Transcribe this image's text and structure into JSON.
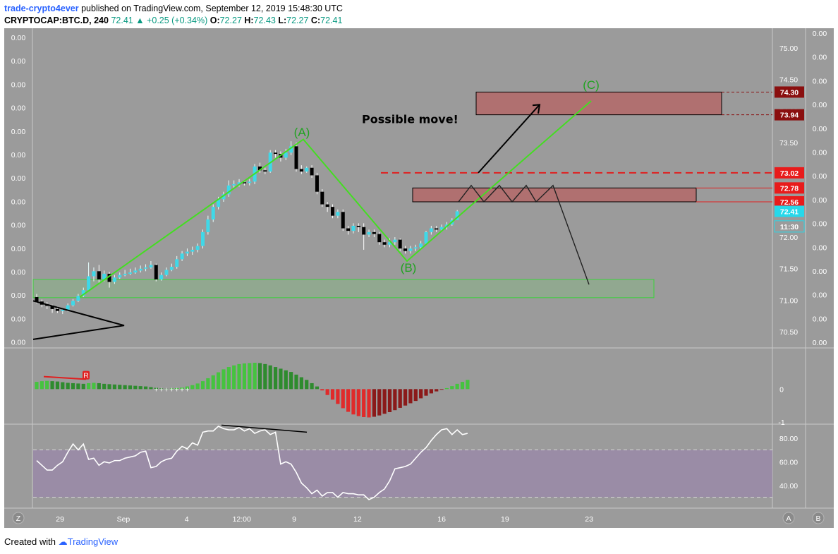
{
  "header": {
    "author": "trade-crypto4ever",
    "published": "published on TradingView.com, September 12, 2019 15:48:30 UTC",
    "symbol": "CRYPTOCAP:BTC.D, 240",
    "last": "72.41",
    "change": "+0.25 (+0.34%)",
    "o_label": "O:",
    "o_value": "72.27",
    "h_label": "H:",
    "h_value": "72.43",
    "l_label": "L:",
    "l_value": "72.27",
    "c_label": "C:",
    "c_value": "72.41"
  },
  "footer": {
    "created_with": "Created with",
    "brand": "TradingView"
  },
  "colors": {
    "pane_bg": "#9b9b9b",
    "axis_bg": "#9b9b9b",
    "up": "#3fd8e8",
    "down": "#000000",
    "wave_line": "#44dd22",
    "macd_up_strong": "#45c33f",
    "macd_up_weak": "#2e8b2e",
    "macd_down_strong": "#e02a2a",
    "macd_down_weak": "#8b1a1a",
    "rsi_band": "#9a8aa8",
    "price_tag_red": "#e81b1b",
    "price_tag_dark": "#8a0f0f",
    "price_tag_cyan": "#27d8ea"
  },
  "chart_data": [
    {
      "type": "candlestick",
      "title": "CRYPTOCAP:BTC.D, 240",
      "ylim": [
        70.3,
        75.2
      ],
      "right_axis_ticks": [
        "75.00",
        "74.50",
        "74.00",
        "73.50",
        "73.00",
        "72.50",
        "72.00",
        "71.50",
        "71.00",
        "70.50"
      ],
      "left_axis_ticks": [
        "0.00",
        "0.00",
        "0.00",
        "0.00",
        "0.00",
        "0.00",
        "0.00",
        "0.00",
        "0.00",
        "0.00",
        "0.00",
        "0.00",
        "0.00",
        "0.00"
      ],
      "far_right_axis_ticks": [
        "0.00",
        "0.00",
        "0.00",
        "0.00",
        "0.00",
        "0.00",
        "0.00",
        "0.00",
        "0.00",
        "0.00",
        "0.00",
        "0.00",
        "0.00",
        "0.00"
      ],
      "x_tick_labels": [
        {
          "label": "29",
          "pos": 4.5
        },
        {
          "label": "Sep",
          "pos": 16.7
        },
        {
          "label": "4",
          "pos": 28.9
        },
        {
          "label": "12:00",
          "pos": 39.5
        },
        {
          "label": "9",
          "pos": 49.6
        },
        {
          "label": "12",
          "pos": 61.8
        },
        {
          "label": "16",
          "pos": 78.0
        },
        {
          "label": "19",
          "pos": 90.2
        },
        {
          "label": "23",
          "pos": 106.4
        }
      ],
      "price_labels": [
        {
          "text": "74.30",
          "value": 74.3,
          "style": "dark"
        },
        {
          "text": "73.94",
          "value": 73.94,
          "style": "dark"
        },
        {
          "text": "73.02",
          "value": 73.02,
          "style": "red"
        },
        {
          "text": "72.78",
          "value": 72.78,
          "style": "red"
        },
        {
          "text": "72.56",
          "value": 72.56,
          "style": "red"
        },
        {
          "text": "72.41",
          "value": 72.41,
          "style": "cyan"
        },
        {
          "text": "11:30",
          "value": 72.17,
          "style": "cyan_outline"
        }
      ],
      "candles": [
        [
          71.05,
          70.98,
          71.1,
          70.95
        ],
        [
          70.98,
          70.93,
          71.01,
          70.89
        ],
        [
          70.93,
          70.91,
          70.97,
          70.86
        ],
        [
          70.91,
          70.86,
          70.93,
          70.8
        ],
        [
          70.86,
          70.83,
          70.9,
          70.8
        ],
        [
          70.83,
          70.85,
          70.87,
          70.78
        ],
        [
          70.85,
          70.92,
          70.95,
          70.82
        ],
        [
          70.92,
          70.99,
          71.02,
          70.9
        ],
        [
          70.99,
          71.07,
          71.1,
          70.97
        ],
        [
          71.07,
          71.16,
          71.2,
          71.05
        ],
        [
          71.16,
          71.38,
          71.6,
          71.14
        ],
        [
          71.38,
          71.46,
          71.52,
          71.3
        ],
        [
          71.46,
          71.33,
          71.56,
          71.28
        ],
        [
          71.33,
          71.42,
          71.47,
          71.3
        ],
        [
          71.42,
          71.29,
          71.45,
          71.2
        ],
        [
          71.29,
          71.36,
          71.4,
          71.26
        ],
        [
          71.36,
          71.4,
          71.44,
          71.34
        ],
        [
          71.4,
          71.42,
          71.48,
          71.38
        ],
        [
          71.42,
          71.44,
          71.5,
          71.4
        ],
        [
          71.44,
          71.47,
          71.52,
          71.42
        ],
        [
          71.47,
          71.5,
          71.55,
          71.44
        ],
        [
          71.5,
          71.52,
          71.57,
          71.46
        ],
        [
          71.52,
          71.56,
          71.62,
          71.5
        ],
        [
          71.56,
          71.33,
          71.58,
          71.3
        ],
        [
          71.33,
          71.4,
          71.44,
          71.31
        ],
        [
          71.4,
          71.48,
          71.52,
          71.38
        ],
        [
          71.48,
          71.53,
          71.58,
          71.46
        ],
        [
          71.53,
          71.65,
          71.7,
          71.5
        ],
        [
          71.65,
          71.74,
          71.78,
          71.62
        ],
        [
          71.74,
          71.77,
          71.82,
          71.7
        ],
        [
          71.77,
          71.8,
          71.85,
          71.72
        ],
        [
          71.8,
          71.86,
          71.9,
          71.76
        ],
        [
          71.86,
          72.08,
          72.12,
          71.82
        ],
        [
          72.08,
          72.28,
          72.34,
          72.04
        ],
        [
          72.28,
          72.48,
          72.52,
          72.24
        ],
        [
          72.48,
          72.6,
          72.64,
          72.44
        ],
        [
          72.6,
          72.68,
          72.72,
          72.56
        ],
        [
          72.68,
          72.82,
          72.9,
          72.64
        ],
        [
          72.82,
          72.84,
          72.9,
          72.78
        ],
        [
          72.84,
          72.87,
          72.92,
          72.8
        ],
        [
          72.87,
          72.86,
          72.9,
          72.82
        ],
        [
          72.86,
          72.88,
          72.92,
          72.82
        ],
        [
          72.88,
          73.12,
          73.16,
          72.84
        ],
        [
          73.12,
          73.06,
          73.18,
          73.02
        ],
        [
          73.06,
          73.04,
          73.1,
          73.0
        ],
        [
          73.04,
          73.34,
          73.38,
          73.02
        ],
        [
          73.34,
          73.32,
          73.38,
          73.26
        ],
        [
          73.32,
          73.26,
          73.36,
          73.2
        ],
        [
          73.26,
          73.34,
          73.4,
          73.22
        ],
        [
          73.34,
          73.44,
          73.52,
          73.3
        ],
        [
          73.44,
          73.08,
          73.5,
          73.04
        ],
        [
          73.08,
          73.04,
          73.14,
          73.0
        ],
        [
          73.04,
          73.1,
          73.12,
          73.02
        ],
        [
          73.1,
          72.98,
          73.14,
          72.94
        ],
        [
          72.98,
          72.72,
          73.02,
          72.68
        ],
        [
          72.72,
          72.52,
          72.76,
          72.48
        ],
        [
          72.52,
          72.48,
          72.56,
          72.4
        ],
        [
          72.48,
          72.34,
          72.52,
          72.3
        ],
        [
          72.34,
          72.4,
          72.44,
          72.3
        ],
        [
          72.4,
          72.14,
          72.44,
          72.1
        ],
        [
          72.14,
          72.1,
          72.18,
          72.04
        ],
        [
          72.1,
          72.18,
          72.22,
          72.06
        ],
        [
          72.18,
          72.16,
          72.22,
          72.08
        ],
        [
          72.16,
          72.04,
          72.22,
          71.8
        ],
        [
          72.04,
          72.08,
          72.12,
          72.0
        ],
        [
          72.08,
          72.05,
          72.12,
          72.0
        ],
        [
          72.05,
          71.92,
          72.08,
          71.88
        ],
        [
          71.92,
          71.88,
          71.96,
          71.84
        ],
        [
          71.88,
          71.92,
          71.98,
          71.84
        ],
        [
          71.92,
          71.96,
          72.0,
          71.88
        ],
        [
          71.96,
          71.82,
          71.98,
          71.78
        ],
        [
          71.82,
          71.78,
          71.86,
          71.74
        ],
        [
          71.78,
          71.82,
          71.86,
          71.74
        ],
        [
          71.82,
          71.84,
          71.88,
          71.78
        ],
        [
          71.84,
          71.9,
          71.94,
          71.8
        ],
        [
          71.9,
          72.08,
          72.1,
          71.88
        ],
        [
          72.08,
          72.14,
          72.18,
          72.04
        ],
        [
          72.14,
          72.12,
          72.18,
          72.08
        ],
        [
          72.12,
          72.16,
          72.2,
          72.1
        ],
        [
          72.16,
          72.2,
          72.24,
          72.12
        ],
        [
          72.2,
          72.27,
          72.3,
          72.18
        ],
        [
          72.27,
          72.41,
          72.43,
          72.27
        ]
      ],
      "wave_labels": [
        {
          "label": "(A)",
          "index": 43.5,
          "price": 73.6
        },
        {
          "label": "(B)",
          "index": 60.0,
          "price": 71.46
        },
        {
          "label": "(C)",
          "index": 89.0,
          "price": 74.37
        }
      ],
      "annotation_text": "Possible move!"
    },
    {
      "type": "bar",
      "title": "",
      "ylim": [
        -1.0,
        1.1
      ],
      "axis_ticks": [
        "0",
        "-1"
      ],
      "values": [
        0.22,
        0.24,
        0.25,
        0.24,
        0.23,
        0.21,
        0.19,
        0.18,
        0.17,
        0.16,
        0.18,
        0.19,
        0.18,
        0.16,
        0.15,
        0.14,
        0.13,
        0.12,
        0.11,
        0.1,
        0.09,
        0.08,
        0.06,
        0.04,
        0.02,
        0.01,
        0.02,
        0.03,
        0.05,
        0.08,
        0.12,
        0.17,
        0.24,
        0.33,
        0.42,
        0.51,
        0.6,
        0.67,
        0.72,
        0.76,
        0.78,
        0.79,
        0.8,
        0.79,
        0.76,
        0.72,
        0.67,
        0.62,
        0.57,
        0.52,
        0.44,
        0.36,
        0.28,
        0.18,
        0.08,
        -0.04,
        -0.18,
        -0.32,
        -0.45,
        -0.58,
        -0.69,
        -0.77,
        -0.82,
        -0.85,
        -0.86,
        -0.84,
        -0.8,
        -0.75,
        -0.7,
        -0.64,
        -0.57,
        -0.5,
        -0.43,
        -0.36,
        -0.28,
        -0.2,
        -0.13,
        -0.07,
        -0.02,
        0.03,
        0.09,
        0.16,
        0.22,
        0.28
      ],
      "markers": [
        {
          "label": "R",
          "index": 8
        }
      ]
    },
    {
      "type": "line",
      "title": "",
      "ylim": [
        22,
        90
      ],
      "axis_ticks": [
        "80.00",
        "60.00",
        "40.00"
      ],
      "band": [
        30,
        70
      ],
      "values": [
        61,
        57,
        53,
        53,
        57,
        60,
        68,
        75,
        70,
        75,
        62,
        63,
        57,
        60,
        59,
        61,
        61,
        63,
        64,
        65,
        68,
        69,
        55,
        56,
        60,
        62,
        63,
        69,
        73,
        71,
        76,
        74,
        85,
        86,
        86,
        90,
        88,
        87,
        87,
        89,
        86,
        88,
        84,
        86,
        87,
        83,
        85,
        58,
        60,
        58,
        51,
        42,
        38,
        33,
        36,
        31,
        34,
        34,
        30,
        34,
        33,
        33,
        32,
        32,
        28,
        30,
        34,
        37,
        44,
        54,
        55,
        56,
        58,
        63,
        68,
        72,
        78,
        83,
        87,
        88,
        83,
        87,
        83,
        84
      ]
    }
  ]
}
